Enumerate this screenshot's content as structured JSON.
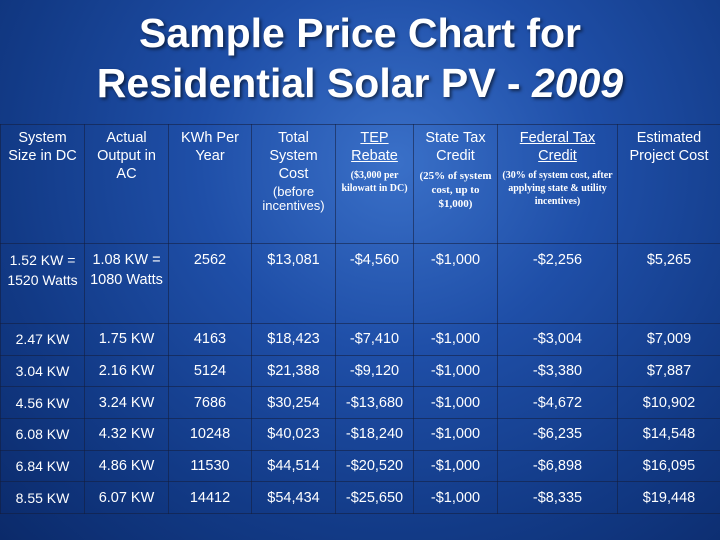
{
  "title": {
    "line1": "Sample Price Chart for",
    "line2": "Residential Solar PV - ",
    "year": "2009"
  },
  "headers": [
    {
      "main": "System Size in DC"
    },
    {
      "main": "Actual Output in AC"
    },
    {
      "main": "KWh Per Year"
    },
    {
      "main": "Total System Cost",
      "sub": "(before incentives)"
    },
    {
      "main": "TEP Rebate",
      "sub": "($3,000 per kilowatt in DC)"
    },
    {
      "main": "State Tax Credit",
      "sub": "(25% of system cost, up to $1,000)"
    },
    {
      "main": "Federal Tax Credit",
      "sub": "(30% of system cost, after applying state & utility incentives)"
    },
    {
      "main": "Estimated Project Cost"
    }
  ],
  "rows": [
    {
      "size": "1.52 KW = 1520 Watts",
      "output": "1.08 KW = 1080 Watts",
      "kwh": "2562",
      "cost": "$13,081",
      "rebate": "-$4,560",
      "state": "-$1,000",
      "federal": "-$2,256",
      "estimated": "$5,265"
    },
    {
      "size": "2.47 KW",
      "output": "1.75 KW",
      "kwh": "4163",
      "cost": "$18,423",
      "rebate": "-$7,410",
      "state": "-$1,000",
      "federal": "-$3,004",
      "estimated": "$7,009"
    },
    {
      "size": "3.04 KW",
      "output": "2.16 KW",
      "kwh": "5124",
      "cost": "$21,388",
      "rebate": "-$9,120",
      "state": "-$1,000",
      "federal": "-$3,380",
      "estimated": "$7,887"
    },
    {
      "size": "4.56 KW",
      "output": "3.24 KW",
      "kwh": "7686",
      "cost": "$30,254",
      "rebate": "-$13,680",
      "state": "-$1,000",
      "federal": "-$4,672",
      "estimated": "$10,902"
    },
    {
      "size": "6.08 KW",
      "output": "4.32 KW",
      "kwh": "10248",
      "cost": "$40,023",
      "rebate": "-$18,240",
      "state": "-$1,000",
      "federal": "-$6,235",
      "estimated": "$14,548"
    },
    {
      "size": "6.84 KW",
      "output": "4.86 KW",
      "kwh": "11530",
      "cost": "$44,514",
      "rebate": "-$20,520",
      "state": "-$1,000",
      "federal": "-$6,898",
      "estimated": "$16,095"
    },
    {
      "size": "8.55 KW",
      "output": "6.07 KW",
      "kwh": "14412",
      "cost": "$54,434",
      "rebate": "-$25,650",
      "state": "-$1,000",
      "federal": "-$8,335",
      "estimated": "$19,448"
    }
  ],
  "colors": {
    "background": "#1f4fa8",
    "dark_text": "#0b1f4a",
    "estimated_text": "#d42020",
    "text": "#ffffff"
  }
}
